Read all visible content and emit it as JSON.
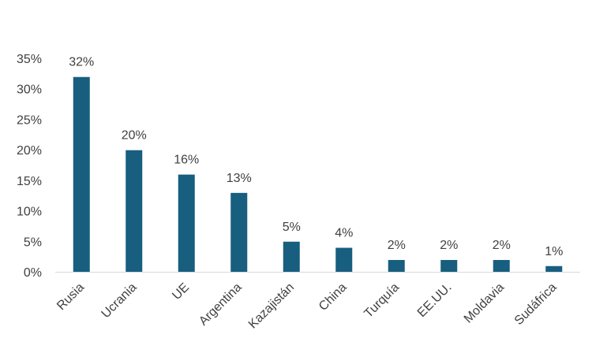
{
  "chart_data": {
    "type": "bar",
    "title": "",
    "xlabel": "",
    "ylabel": "",
    "categories": [
      "Rusia",
      "Ucrania",
      "UE",
      "Argentina",
      "Kazajistán",
      "China",
      "Turquía",
      "EE.UU.",
      "Moldavia",
      "Sudáfrica"
    ],
    "values": [
      32,
      20,
      16,
      13,
      5,
      4,
      2,
      2,
      2,
      1
    ],
    "data_labels": [
      "32%",
      "20%",
      "16%",
      "13%",
      "5%",
      "4%",
      "2%",
      "2%",
      "2%",
      "1%"
    ],
    "ylim": [
      0,
      35
    ],
    "yticks": [
      0,
      5,
      10,
      15,
      20,
      25,
      30,
      35
    ],
    "ytick_labels": [
      "0%",
      "5%",
      "10%",
      "15%",
      "20%",
      "25%",
      "30%",
      "35%"
    ],
    "bar_color": "#175E7F",
    "grid": false,
    "legend": "none"
  }
}
